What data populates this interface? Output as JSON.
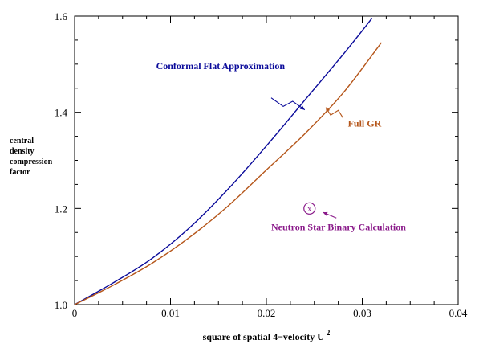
{
  "chart_data": {
    "type": "line",
    "title": "",
    "xlabel": "square of spatial 4−velocity U",
    "xlabel_superscript": "2",
    "ylabel_lines": [
      "central",
      "density",
      "compression",
      "factor"
    ],
    "xlim": [
      0,
      0.04
    ],
    "ylim": [
      1.0,
      1.6
    ],
    "x_ticks": [
      0,
      0.01,
      0.02,
      0.03,
      0.04
    ],
    "x_tick_labels": [
      "0",
      "0.01",
      "0.02",
      "0.03",
      "0.04"
    ],
    "y_ticks": [
      1.0,
      1.2,
      1.4,
      1.6
    ],
    "y_tick_labels": [
      "1.0",
      "1.2",
      "1.4",
      "1.6"
    ],
    "grid": false,
    "series": [
      {
        "name": "Conformal Flat Approximation",
        "color": "#0a0a9a",
        "x": [
          0,
          0.004,
          0.008,
          0.012,
          0.016,
          0.02,
          0.024,
          0.028,
          0.031
        ],
        "y": [
          1.0,
          1.045,
          1.095,
          1.16,
          1.24,
          1.33,
          1.425,
          1.52,
          1.595
        ]
      },
      {
        "name": "Full GR",
        "color": "#b5561a",
        "x": [
          0,
          0.004,
          0.008,
          0.012,
          0.016,
          0.02,
          0.024,
          0.028,
          0.032
        ],
        "y": [
          1.0,
          1.04,
          1.085,
          1.14,
          1.205,
          1.28,
          1.355,
          1.44,
          1.545
        ]
      }
    ],
    "annotations": [
      {
        "text": "Conformal Flat Approximation",
        "color": "#0a0a9a",
        "text_at": [
          0.0085,
          1.49
        ],
        "arrow_from": [
          0.0205,
          1.43
        ],
        "arrow_to": [
          0.024,
          1.405
        ]
      },
      {
        "text": "Full GR",
        "color": "#b5561a",
        "text_at": [
          0.0285,
          1.37
        ],
        "arrow_from": [
          0.028,
          1.388
        ],
        "arrow_to": [
          0.0262,
          1.41
        ]
      },
      {
        "text": "Neutron Star Binary Calculation",
        "color": "#8a1a8a",
        "text_at": [
          0.0205,
          1.155
        ],
        "arrow_from": [
          0.0273,
          1.18
        ],
        "arrow_to": [
          0.0259,
          1.192
        ]
      }
    ],
    "points": [
      {
        "label": "x",
        "color": "#8a1a8a",
        "x": 0.0245,
        "y": 1.2
      }
    ]
  }
}
